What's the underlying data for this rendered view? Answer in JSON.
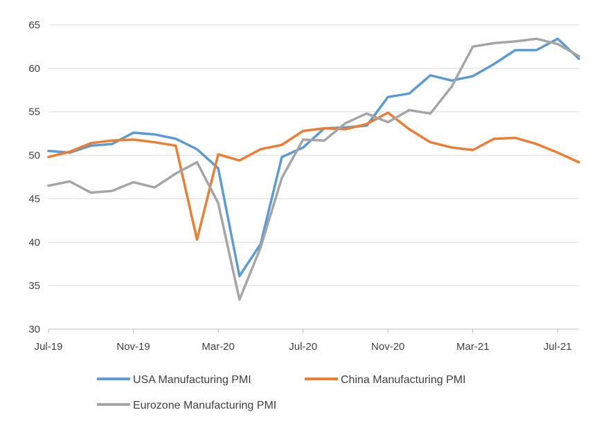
{
  "chart_data": {
    "type": "line",
    "title": "",
    "xlabel": "",
    "ylabel": "",
    "ylim": [
      30,
      65
    ],
    "y_ticks": [
      30,
      35,
      40,
      45,
      50,
      55,
      60,
      65
    ],
    "x_tick_labels": [
      "Jul-19",
      "Nov-19",
      "Mar-20",
      "Jul-20",
      "Nov-20",
      "Mar-21",
      "Jul-21"
    ],
    "x_tick_label_month_index": [
      0,
      4,
      8,
      12,
      16,
      20,
      24
    ],
    "months": [
      "Jul-19",
      "Aug-19",
      "Sep-19",
      "Oct-19",
      "Nov-19",
      "Dec-19",
      "Jan-20",
      "Feb-20",
      "Mar-20",
      "Apr-20",
      "May-20",
      "Jun-20",
      "Jul-20",
      "Aug-20",
      "Sep-20",
      "Oct-20",
      "Nov-20",
      "Dec-20",
      "Jan-21",
      "Feb-21",
      "Mar-21",
      "Apr-21",
      "May-21",
      "Jun-21",
      "Jul-21",
      "Aug-21"
    ],
    "grid": true,
    "legend_position": "bottom",
    "series": [
      {
        "name": "USA Manufacturing PMI",
        "color": "#5b9bd5",
        "values": [
          50.5,
          50.3,
          51.1,
          51.3,
          52.6,
          52.4,
          51.9,
          50.7,
          48.5,
          36.1,
          39.8,
          49.8,
          50.9,
          53.1,
          53.2,
          53.4,
          56.7,
          57.1,
          59.2,
          58.6,
          59.1,
          60.5,
          62.1,
          62.1,
          63.4,
          61.1
        ]
      },
      {
        "name": "China Manufacturing PMI",
        "color": "#ed7d31",
        "values": [
          49.8,
          50.4,
          51.4,
          51.7,
          51.8,
          51.5,
          51.1,
          40.3,
          50.1,
          49.4,
          50.7,
          51.2,
          52.8,
          53.1,
          53.0,
          53.6,
          54.9,
          53.0,
          51.5,
          50.9,
          50.6,
          51.9,
          52.0,
          51.3,
          50.3,
          49.2
        ]
      },
      {
        "name": "Eurozone Manufacturing PMI",
        "color": "#a5a5a5",
        "values": [
          46.5,
          47.0,
          45.7,
          45.9,
          46.9,
          46.3,
          47.9,
          49.2,
          44.5,
          33.4,
          39.4,
          47.4,
          51.8,
          51.7,
          53.7,
          54.8,
          53.8,
          55.2,
          54.8,
          57.9,
          62.5,
          62.9,
          63.1,
          63.4,
          62.8,
          61.4
        ]
      }
    ]
  }
}
